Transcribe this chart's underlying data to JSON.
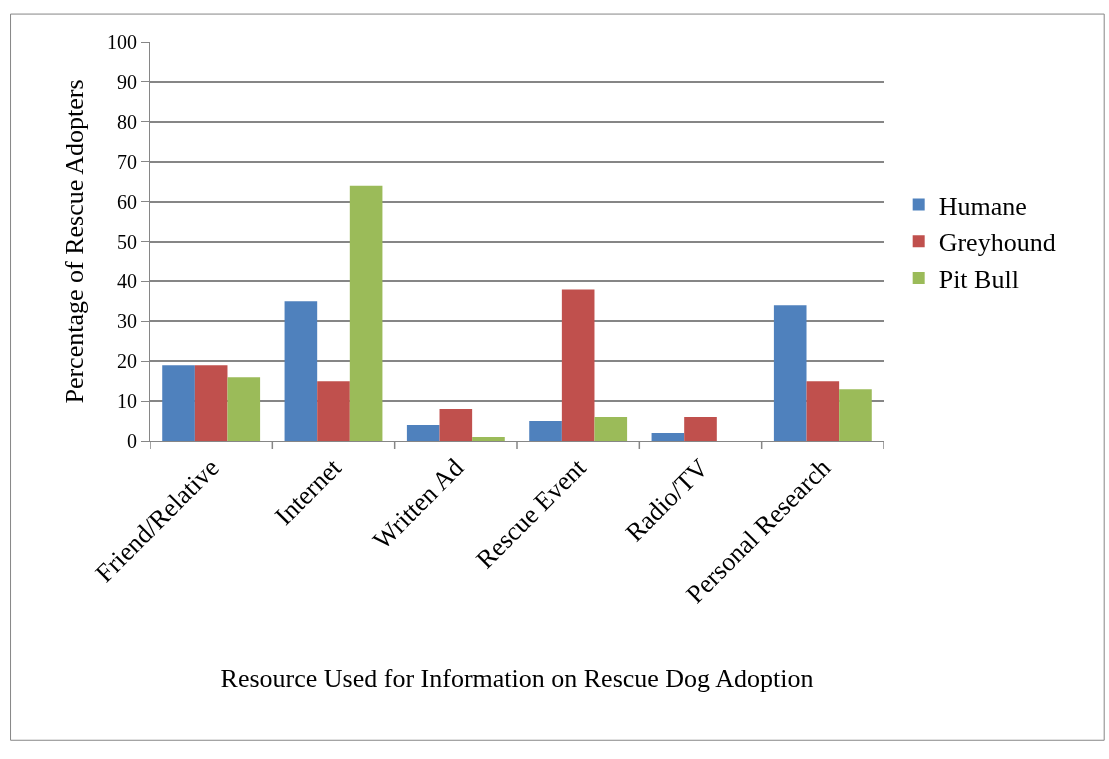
{
  "chart_data": {
    "type": "bar",
    "xlabel": "Resource Used for Information on Rescue Dog Adoption",
    "ylabel": "Percentage of Rescue Adopters",
    "categories": [
      "Friend/Relative",
      "Internet",
      "Written Ad",
      "Rescue Event",
      "Radio/TV",
      "Personal Research"
    ],
    "series": [
      {
        "name": "Humane",
        "color": "#4f81bd",
        "values": [
          19,
          35,
          4,
          5,
          2,
          34
        ]
      },
      {
        "name": "Greyhound",
        "color": "#c0504d",
        "values": [
          19,
          15,
          8,
          38,
          6,
          15
        ]
      },
      {
        "name": "Pit Bull",
        "color": "#9bbb59",
        "values": [
          16,
          64,
          1,
          6,
          0,
          13
        ]
      }
    ],
    "ylim": [
      0,
      100
    ],
    "yticks": [
      0,
      10,
      20,
      30,
      40,
      50,
      60,
      70,
      80,
      90,
      100
    ],
    "grid": "y",
    "legend": "right"
  }
}
